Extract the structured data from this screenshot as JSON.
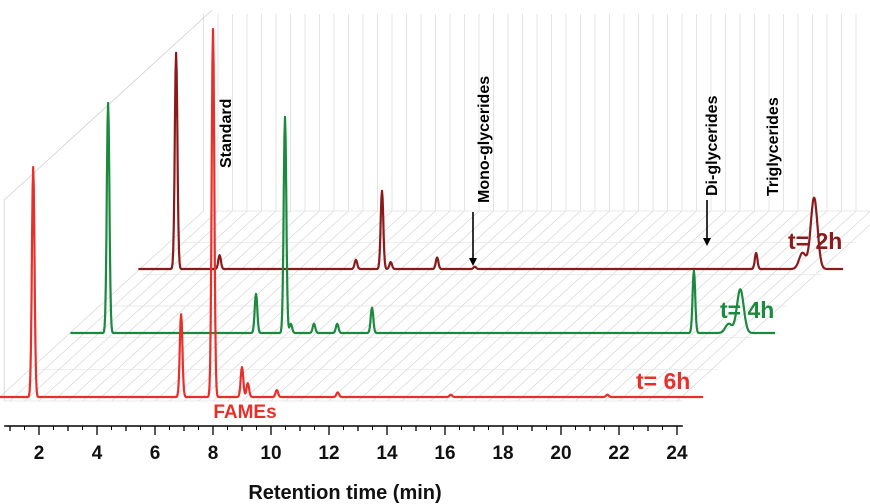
{
  "chart_data": {
    "type": "line",
    "xlabel": "Retention time (min)",
    "xlim": [
      1,
      24
    ],
    "x_ticks": [
      2,
      4,
      6,
      8,
      10,
      12,
      14,
      16,
      18,
      20,
      22,
      24
    ],
    "annotations": {
      "standard": "Standard",
      "monoglycerides": "Mono-glycerides",
      "diglycerides": "Di-glycerides",
      "triglycerides": "Triglycerides",
      "fames": "FAMEs"
    },
    "series": [
      {
        "name": "t= 2h",
        "color": "#8b1a1a",
        "peaks": [
          [
            1.9,
            0.94
          ],
          [
            3.4,
            0.06
          ],
          [
            8.1,
            0.04
          ],
          [
            9.0,
            0.34
          ],
          [
            9.3,
            0.03
          ],
          [
            10.9,
            0.05
          ],
          [
            12.2,
            0.01
          ],
          [
            21.9,
            0.07
          ],
          [
            23.5,
            0.07
          ],
          [
            23.9,
            0.31
          ]
        ]
      },
      {
        "name": "t= 4h",
        "color": "#1a8a3e",
        "peaks": [
          [
            1.9,
            1.0
          ],
          [
            7.0,
            0.17
          ],
          [
            8.0,
            0.94
          ],
          [
            8.2,
            0.04
          ],
          [
            9.0,
            0.04
          ],
          [
            9.8,
            0.04
          ],
          [
            11.0,
            0.11
          ],
          [
            22.1,
            0.27
          ],
          [
            23.3,
            0.04
          ],
          [
            23.7,
            0.19
          ]
        ]
      },
      {
        "name": "t= 6h",
        "color": "#e8302b",
        "peaks": [
          [
            1.8,
            1.0
          ],
          [
            6.9,
            0.36
          ],
          [
            8.0,
            1.6
          ],
          [
            9.0,
            0.13
          ],
          [
            9.2,
            0.06
          ],
          [
            10.2,
            0.03
          ],
          [
            12.3,
            0.02
          ],
          [
            16.2,
            0.01
          ],
          [
            21.6,
            0.01
          ]
        ]
      }
    ]
  }
}
